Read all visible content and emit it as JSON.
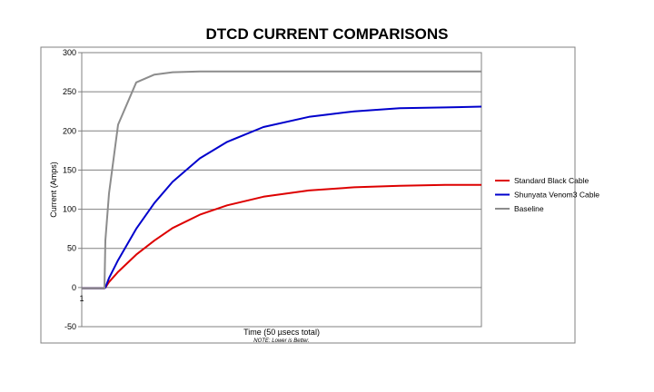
{
  "chart_data": {
    "type": "line",
    "title": "DTCD CURRENT COMPARISONS",
    "xlabel": "Time (50 µsecs total)",
    "note": "NOTE: Lower is Better.",
    "ylabel": "Current (Amps)",
    "ylim": [
      -50,
      300
    ],
    "yticks": [
      -50,
      0,
      50,
      100,
      150,
      200,
      250,
      300
    ],
    "xtick_label": "1",
    "grid": true,
    "legend_position": "right",
    "x": [
      0,
      25,
      26,
      30,
      40,
      60,
      80,
      100,
      130,
      160,
      200,
      250,
      300,
      350,
      400,
      440
    ],
    "series": [
      {
        "name": "Standard Black Cable",
        "color": "#dd0000",
        "values": [
          -1,
          -1,
          0,
          7,
          20,
          42,
          60,
          76,
          93,
          105,
          116,
          124,
          128,
          130,
          131,
          131
        ]
      },
      {
        "name": "Shunyata Venom3 Cable",
        "color": "#0000cc",
        "values": [
          -1,
          -1,
          0,
          12,
          35,
          75,
          108,
          135,
          165,
          186,
          205,
          218,
          225,
          229,
          230,
          231
        ]
      },
      {
        "name": "Baseline",
        "color": "#8c8c8c",
        "values": [
          -1,
          -1,
          60,
          120,
          208,
          262,
          272,
          275,
          276,
          276,
          276,
          276,
          276,
          276,
          276,
          276
        ]
      }
    ]
  }
}
